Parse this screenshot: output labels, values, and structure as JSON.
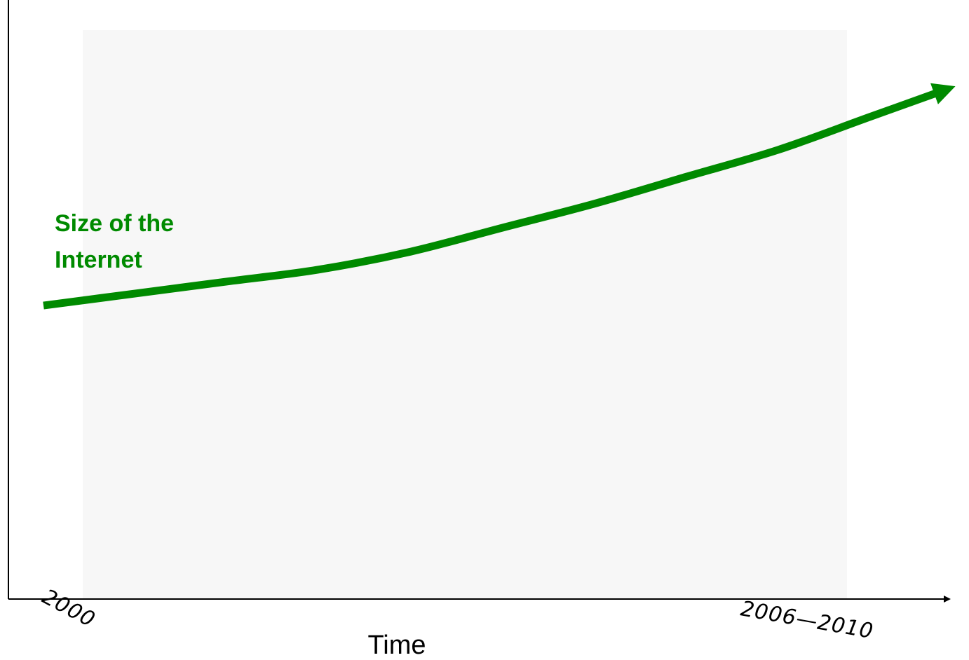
{
  "chart_data": {
    "type": "line",
    "title": "",
    "xlabel": "Time",
    "ylabel": "",
    "x_ticks": [
      "2000",
      "2006—2010"
    ],
    "series": [
      {
        "name": "Size of the Internet",
        "label_lines": [
          "Size of the",
          "Internet"
        ],
        "color": "#008a00",
        "x": [
          0.0,
          0.1,
          0.2,
          0.3,
          0.4,
          0.5,
          0.6,
          0.7,
          0.8,
          0.9,
          1.0
        ],
        "values": [
          0.49,
          0.51,
          0.53,
          0.55,
          0.58,
          0.62,
          0.66,
          0.705,
          0.75,
          0.805,
          0.86
        ]
      }
    ],
    "xlim": [
      0,
      1
    ],
    "ylim": [
      0,
      1
    ],
    "grid": false,
    "legend": "none",
    "plot_background": "#f7f7f7"
  }
}
